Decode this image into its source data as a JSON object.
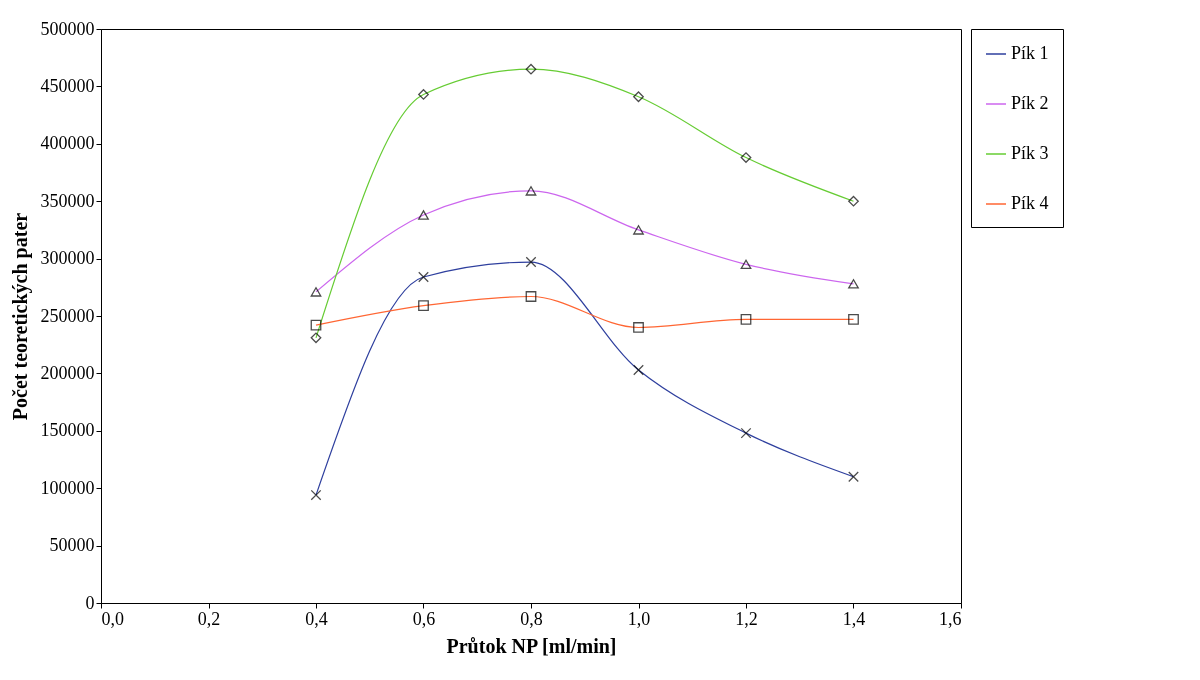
{
  "chart_data": {
    "type": "line",
    "xlabel": "Průtok NP [ml/min]",
    "ylabel": "Počet teoretických pater",
    "x": [
      0.4,
      0.6,
      0.8,
      1.0,
      1.2,
      1.4
    ],
    "series": [
      {
        "name": "Pík 1",
        "color": "#2e3f9e",
        "marker": "cross",
        "values": [
          94000,
          284000,
          297000,
          203000,
          148000,
          110000
        ]
      },
      {
        "name": "Pík 2",
        "color": "#cc66ee",
        "marker": "triangle",
        "values": [
          271000,
          338000,
          359000,
          325000,
          295000,
          278000
        ]
      },
      {
        "name": "Pík 3",
        "color": "#66cc33",
        "marker": "diamond",
        "values": [
          231000,
          443000,
          465000,
          441000,
          388000,
          350000
        ]
      },
      {
        "name": "Pík 4",
        "color": "#ff6633",
        "marker": "square",
        "values": [
          242000,
          259000,
          267000,
          240000,
          247000,
          247000
        ]
      }
    ],
    "xlim": [
      0,
      1.6
    ],
    "xticks": [
      {
        "value": 0,
        "label": "0,0"
      },
      {
        "value": 0.2,
        "label": "0,2"
      },
      {
        "value": 0.4,
        "label": "0,4"
      },
      {
        "value": 0.6,
        "label": "0,6"
      },
      {
        "value": 0.8,
        "label": "0,8"
      },
      {
        "value": 1.0,
        "label": "1,0"
      },
      {
        "value": 1.2,
        "label": "1,2"
      },
      {
        "value": 1.4,
        "label": "1,4"
      },
      {
        "value": 1.6,
        "label": "1,6"
      }
    ],
    "ylim": [
      0,
      500000
    ],
    "yticks": [
      0,
      50000,
      100000,
      150000,
      200000,
      250000,
      300000,
      350000,
      400000,
      450000,
      500000
    ],
    "grid": false,
    "legend": "right",
    "line_style": "solid"
  }
}
